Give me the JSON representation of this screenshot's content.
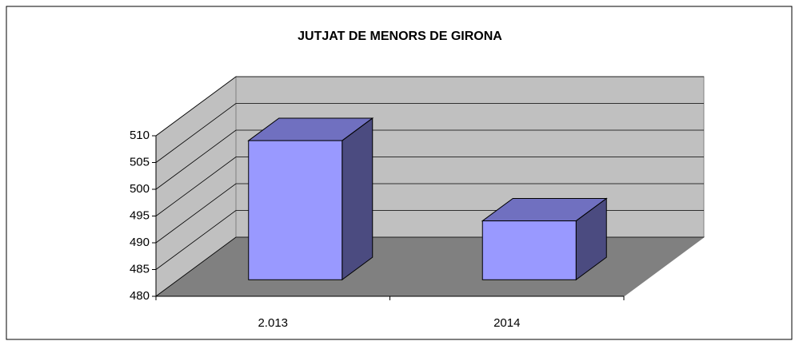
{
  "chart_data": {
    "type": "bar3d",
    "title": "JUTJAT DE MENORS DE GIRONA",
    "categories": [
      "2.013",
      "2014"
    ],
    "values": [
      506,
      491
    ],
    "color": "#9999ff",
    "ylim": [
      480,
      510
    ],
    "yticks": [
      480,
      485,
      490,
      495,
      500,
      505,
      510
    ],
    "grid": true
  }
}
